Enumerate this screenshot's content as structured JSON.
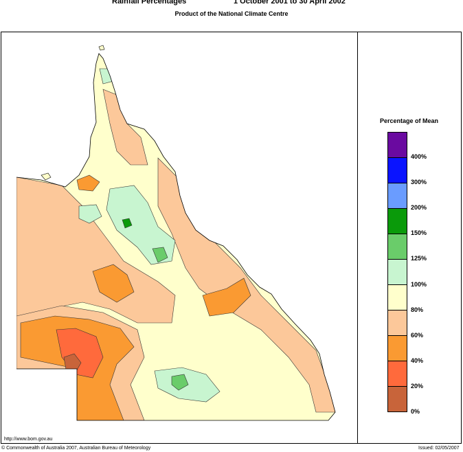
{
  "header": {
    "title": "Rainfall Percentages",
    "period": "1 October 2001 to 30 April 2002",
    "subtitle": "Product of the National Climate Centre"
  },
  "legend": {
    "title": "Percentage of Mean",
    "bands": [
      {
        "color": "#6a0aa0"
      },
      {
        "color": "#0a14ff"
      },
      {
        "color": "#6a9cff"
      },
      {
        "color": "#0a9a0a"
      },
      {
        "color": "#6acc6a"
      },
      {
        "color": "#c8f5d0"
      },
      {
        "color": "#ffffcc"
      },
      {
        "color": "#fcc89a"
      },
      {
        "color": "#fa9a32"
      },
      {
        "color": "#ff6a3c"
      },
      {
        "color": "#c8643a"
      }
    ],
    "labels": [
      "400%",
      "300%",
      "200%",
      "150%",
      "125%",
      "100%",
      "80%",
      "60%",
      "40%",
      "20%",
      "0%"
    ]
  },
  "colors": {
    "band_0_20": "#c8643a",
    "band_20_40": "#ff6a3c",
    "band_40_60": "#fa9a32",
    "band_60_80": "#fcc89a",
    "band_80_100": "#ffffcc",
    "band_100_125": "#c8f5d0",
    "band_125_150": "#6acc6a",
    "band_150_200": "#0a9a0a"
  },
  "footer": {
    "url": "http://www.bom.gov.au",
    "copyright": "© Commonwealth of Australia 2007, Australian Bureau of Meteorology",
    "issued": "Issued: 02/05/2007"
  }
}
